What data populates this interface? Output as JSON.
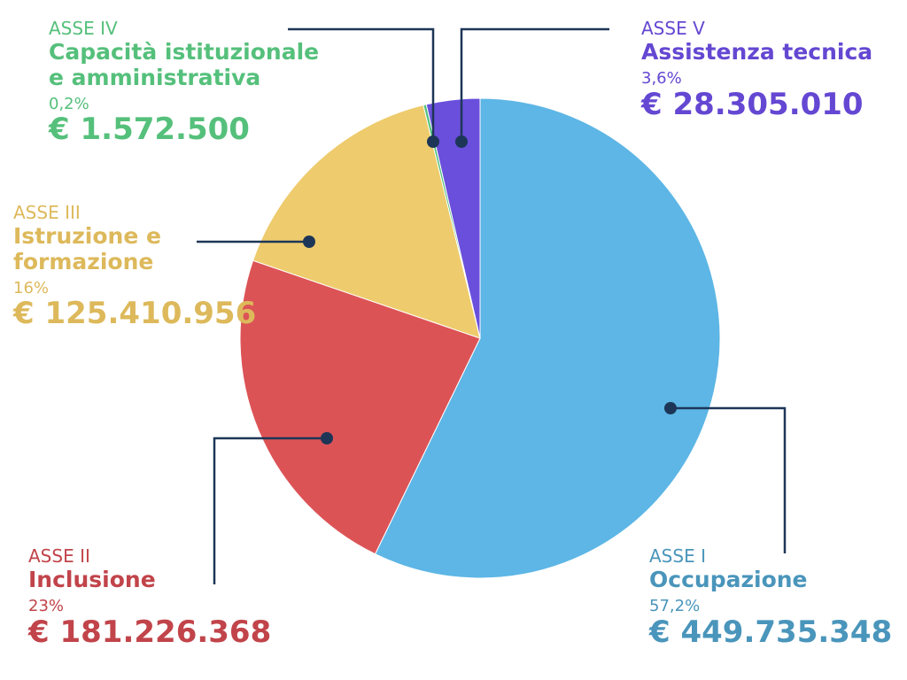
{
  "chart_data": {
    "type": "pie",
    "start": "top",
    "direction": "clockwise",
    "slices": [
      {
        "axis": "ASSE I",
        "name": "Occupazione",
        "percent_label": "57,2%",
        "amount": "€ 449.735.348",
        "value": 449735348,
        "color": "#5db6e5",
        "text_color": "#4a95bb"
      },
      {
        "axis": "ASSE II",
        "name": "Inclusione",
        "percent_label": "23%",
        "amount": "€ 181.226.368",
        "value": 181226368,
        "color": "#dc5356",
        "text_color": "#c1444a"
      },
      {
        "axis": "ASSE III",
        "name_lines": [
          "Istruzione e",
          "formazione"
        ],
        "percent_label": "16%",
        "amount": "€ 125.410.956",
        "value": 125410956,
        "color": "#eecb6c",
        "text_color": "#ddb95b"
      },
      {
        "axis": "ASSE IV",
        "name_lines": [
          "Capacità istituzionale",
          "e amministrativa"
        ],
        "percent_label": "0,2%",
        "amount": "€ 1.572.500",
        "value": 1572500,
        "color": "#4fc07b",
        "text_color": "#55c07b"
      },
      {
        "axis": "ASSE V",
        "name": "Assistenza tecnica",
        "percent_label": "3,6%",
        "amount": "€ 28.305.010",
        "value": 28305010,
        "color": "#6a4fdc",
        "text_color": "#6447d2"
      }
    ],
    "leader_color": "#1d3657"
  }
}
